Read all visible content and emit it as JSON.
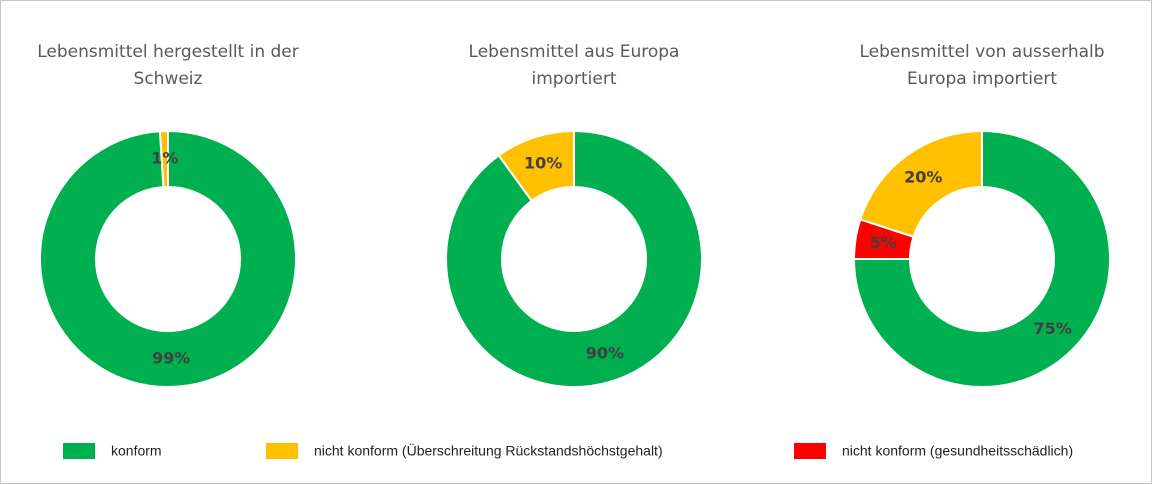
{
  "legend": {
    "items": [
      {
        "name": "konform",
        "color": "#00b050"
      },
      {
        "name": "nicht konform (Überschreitung Rückstandshöchstgehalt)",
        "color": "#ffc000"
      },
      {
        "name": "nicht konform (gesundheitsschädlich)",
        "color": "#ff0000"
      }
    ]
  },
  "chart_data": [
    {
      "type": "donut",
      "title": "Lebensmittel hergestellt in der\nSchweiz",
      "values": [
        99,
        1
      ],
      "value_labels": [
        "99%",
        "1%"
      ],
      "colors": [
        "#00b050",
        "#ffc000"
      ]
    },
    {
      "type": "donut",
      "title": "Lebensmittel aus Europa\nimportiert",
      "values": [
        90,
        10
      ],
      "value_labels": [
        "90%",
        "10%"
      ],
      "colors": [
        "#00b050",
        "#ffc000"
      ]
    },
    {
      "type": "donut",
      "title": "Lebensmittel von ausserhalb\nEuropa importiert",
      "values": [
        75,
        5,
        20
      ],
      "value_labels": [
        "75%",
        "5%",
        "20%"
      ],
      "colors": [
        "#00b050",
        "#ff0000",
        "#ffc000"
      ]
    }
  ]
}
